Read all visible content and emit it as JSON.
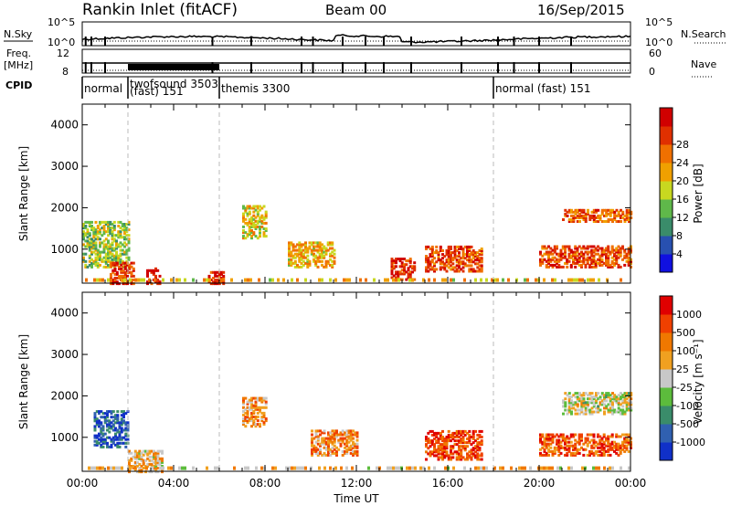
{
  "header": {
    "station": "Rankin Inlet (fitACF)",
    "beam": "Beam 00",
    "date": "16/Sep/2015"
  },
  "summary": {
    "nsky_label": "N.Sky",
    "nsearch_label": "N.Search",
    "freq_label_top": "Freq.",
    "freq_label_unit": "[MHz]",
    "nave_label": "Nave",
    "cpid_label": "CPID",
    "left_ticks_top": [
      "10^5",
      "10^0"
    ],
    "right_ticks_top": [
      "10^5",
      "10^0"
    ],
    "left_ticks_freq": [
      "12",
      "8"
    ],
    "right_ticks_nave": [
      "60",
      "0"
    ],
    "cpid_segments": [
      {
        "start_hour": 0.0,
        "label": "normal"
      },
      {
        "start_hour": 2.0,
        "label": "twofsound 3503"
      },
      {
        "start_hour": 2.0,
        "label": "(fast) 151"
      },
      {
        "start_hour": 6.0,
        "label": "themis 3300"
      },
      {
        "start_hour": 18.0,
        "label": "normal (fast) 151"
      }
    ]
  },
  "chart_data": [
    {
      "type": "heatmap",
      "name": "Power",
      "x_range_hours": [
        0,
        24
      ],
      "y_range_km": [
        180,
        4500
      ],
      "ylabel": "Slant Range [km]",
      "y_ticks": [
        1000,
        2000,
        3000,
        4000
      ],
      "colorbar_label": "Power [dB]",
      "colorbar_ticks": [
        "4",
        "8",
        "12",
        "16",
        "20",
        "24",
        "28"
      ],
      "colors": [
        "#1010e0",
        "#2850b0",
        "#3a8c6a",
        "#5fb84a",
        "#c8d820",
        "#f0a000",
        "#f07000",
        "#e03000",
        "#d00000"
      ],
      "data_regions": [
        {
          "t0": 0.0,
          "t1": 2.0,
          "r0": 600,
          "r1": 1700,
          "level": 0.45
        },
        {
          "t0": 1.2,
          "t1": 2.2,
          "r0": 200,
          "r1": 700,
          "level": 0.85
        },
        {
          "t0": 2.8,
          "t1": 3.4,
          "r0": 200,
          "r1": 600,
          "level": 0.9
        },
        {
          "t0": 5.5,
          "t1": 6.2,
          "r0": 200,
          "r1": 500,
          "level": 0.9
        },
        {
          "t0": 7.0,
          "t1": 8.0,
          "r0": 1300,
          "r1": 2100,
          "level": 0.55
        },
        {
          "t0": 9.0,
          "t1": 11.0,
          "r0": 600,
          "r1": 1200,
          "level": 0.6
        },
        {
          "t0": 13.5,
          "t1": 14.5,
          "r0": 300,
          "r1": 800,
          "level": 0.85
        },
        {
          "t0": 15.0,
          "t1": 17.5,
          "r0": 500,
          "r1": 1100,
          "level": 0.8
        },
        {
          "t0": 20.0,
          "t1": 24.0,
          "r0": 600,
          "r1": 1100,
          "level": 0.8
        },
        {
          "t0": 21.0,
          "t1": 24.0,
          "r0": 1700,
          "r1": 2000,
          "level": 0.75
        }
      ]
    },
    {
      "type": "heatmap",
      "name": "Velocity",
      "x_range_hours": [
        0,
        24
      ],
      "y_range_km": [
        180,
        4500
      ],
      "ylabel": "Slant Range [km]",
      "y_ticks": [
        1000,
        2000,
        3000,
        4000
      ],
      "xlabel": "Time UT",
      "x_tick_labels": [
        "00:00",
        "04:00",
        "08:00",
        "12:00",
        "16:00",
        "20:00",
        "00:00"
      ],
      "colorbar_label": "Velocity [m s⁻¹]",
      "colorbar_ticks": [
        "1000",
        "500",
        "100",
        "25",
        "-25",
        "-100",
        "-500",
        "-1000"
      ],
      "colors": [
        "#1030c8",
        "#3060b0",
        "#3a8c6a",
        "#5cbc3c",
        "#c8c8c8",
        "#f0a020",
        "#f07800",
        "#f04000",
        "#e00000"
      ],
      "data_regions": [
        {
          "t0": 0.5,
          "t1": 2.0,
          "r0": 800,
          "r1": 1700,
          "level": 0.15
        },
        {
          "t0": 2.0,
          "t1": 3.5,
          "r0": 200,
          "r1": 700,
          "level": 0.6
        },
        {
          "t0": 7.0,
          "t1": 8.0,
          "r0": 1300,
          "r1": 2000,
          "level": 0.65
        },
        {
          "t0": 10.0,
          "t1": 12.0,
          "r0": 600,
          "r1": 1200,
          "level": 0.7
        },
        {
          "t0": 15.0,
          "t1": 17.5,
          "r0": 500,
          "r1": 1200,
          "level": 0.85
        },
        {
          "t0": 20.0,
          "t1": 24.0,
          "r0": 600,
          "r1": 1100,
          "level": 0.8
        },
        {
          "t0": 21.0,
          "t1": 24.0,
          "r0": 1600,
          "r1": 2100,
          "level": 0.5
        }
      ]
    }
  ],
  "mode_change_hours": [
    2.0,
    6.0,
    18.0
  ]
}
